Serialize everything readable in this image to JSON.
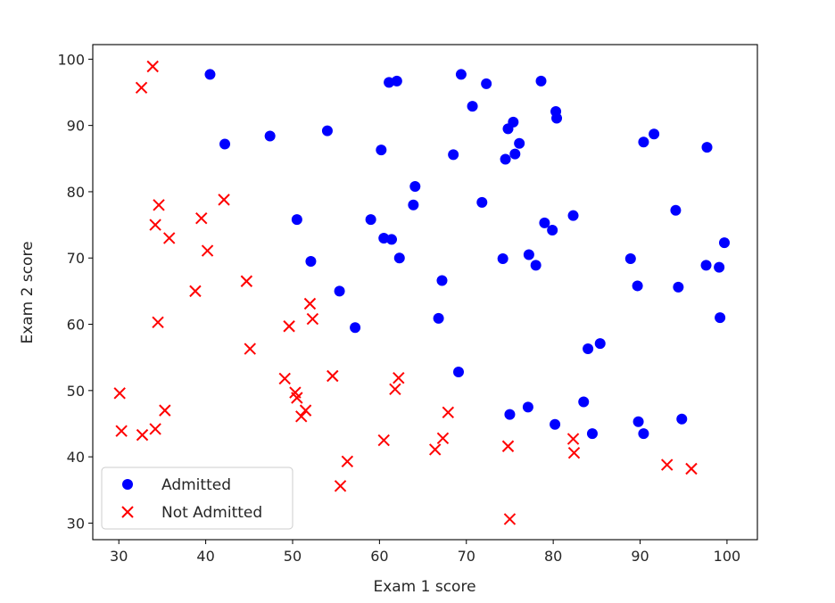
{
  "chart_data": {
    "type": "scatter",
    "xlabel": "Exam 1 score",
    "ylabel": "Exam 2 score",
    "xlim": [
      27,
      103.5
    ],
    "ylim": [
      27.5,
      102.2
    ],
    "xticks": [
      30,
      40,
      50,
      60,
      70,
      80,
      90,
      100
    ],
    "yticks": [
      30,
      40,
      50,
      60,
      70,
      80,
      90,
      100
    ],
    "grid": false,
    "legend_position": "lower-left",
    "series": [
      {
        "name": "Admitted",
        "marker": "circle",
        "color": "#0000ff",
        "points": [
          [
            40.5,
            97.7
          ],
          [
            42.2,
            87.2
          ],
          [
            47.4,
            88.4
          ],
          [
            50.5,
            75.8
          ],
          [
            52.1,
            69.5
          ],
          [
            54.0,
            89.2
          ],
          [
            55.4,
            65.0
          ],
          [
            57.2,
            59.5
          ],
          [
            59.0,
            75.8
          ],
          [
            60.2,
            86.3
          ],
          [
            60.5,
            73.0
          ],
          [
            61.1,
            96.5
          ],
          [
            61.4,
            72.8
          ],
          [
            62.0,
            96.7
          ],
          [
            62.3,
            70.0
          ],
          [
            63.9,
            78.0
          ],
          [
            64.1,
            80.8
          ],
          [
            66.8,
            60.9
          ],
          [
            67.2,
            66.6
          ],
          [
            68.5,
            85.6
          ],
          [
            69.1,
            52.8
          ],
          [
            69.4,
            97.7
          ],
          [
            70.7,
            92.9
          ],
          [
            71.8,
            78.4
          ],
          [
            72.3,
            96.3
          ],
          [
            74.2,
            69.9
          ],
          [
            74.5,
            84.9
          ],
          [
            74.8,
            89.5
          ],
          [
            75.0,
            46.4
          ],
          [
            75.4,
            90.5
          ],
          [
            75.6,
            85.7
          ],
          [
            76.1,
            87.3
          ],
          [
            77.1,
            47.5
          ],
          [
            77.2,
            70.5
          ],
          [
            78.0,
            68.9
          ],
          [
            78.6,
            96.7
          ],
          [
            79.0,
            75.3
          ],
          [
            79.9,
            74.2
          ],
          [
            80.2,
            44.9
          ],
          [
            80.3,
            92.1
          ],
          [
            80.4,
            91.1
          ],
          [
            82.3,
            76.4
          ],
          [
            83.5,
            48.3
          ],
          [
            84.0,
            56.3
          ],
          [
            84.5,
            43.5
          ],
          [
            85.4,
            57.1
          ],
          [
            88.9,
            69.9
          ],
          [
            89.7,
            65.8
          ],
          [
            89.8,
            45.3
          ],
          [
            90.4,
            43.5
          ],
          [
            90.4,
            87.5
          ],
          [
            91.6,
            88.7
          ],
          [
            94.1,
            77.2
          ],
          [
            94.4,
            65.6
          ],
          [
            94.8,
            45.7
          ],
          [
            97.6,
            68.9
          ],
          [
            97.7,
            86.7
          ],
          [
            99.1,
            68.6
          ],
          [
            99.2,
            61.0
          ],
          [
            99.7,
            72.3
          ]
        ]
      },
      {
        "name": "Not Admitted",
        "marker": "x",
        "color": "#ff0000",
        "points": [
          [
            30.1,
            49.6
          ],
          [
            30.3,
            43.9
          ],
          [
            32.6,
            95.7
          ],
          [
            32.7,
            43.3
          ],
          [
            33.9,
            98.9
          ],
          [
            34.2,
            44.2
          ],
          [
            34.2,
            75.0
          ],
          [
            34.5,
            60.3
          ],
          [
            34.6,
            78.0
          ],
          [
            35.3,
            47.0
          ],
          [
            35.8,
            73.0
          ],
          [
            38.8,
            65.0
          ],
          [
            39.5,
            76.0
          ],
          [
            40.2,
            71.1
          ],
          [
            42.1,
            78.8
          ],
          [
            44.7,
            66.5
          ],
          [
            45.1,
            56.3
          ],
          [
            49.1,
            51.8
          ],
          [
            49.6,
            59.7
          ],
          [
            50.3,
            49.7
          ],
          [
            50.5,
            48.9
          ],
          [
            51.0,
            46.1
          ],
          [
            51.5,
            47.0
          ],
          [
            52.0,
            63.1
          ],
          [
            52.3,
            60.8
          ],
          [
            54.6,
            52.2
          ],
          [
            55.5,
            35.6
          ],
          [
            56.3,
            39.3
          ],
          [
            60.5,
            42.5
          ],
          [
            61.8,
            50.2
          ],
          [
            62.2,
            51.9
          ],
          [
            66.4,
            41.1
          ],
          [
            67.3,
            42.8
          ],
          [
            67.9,
            46.7
          ],
          [
            74.8,
            41.6
          ],
          [
            75.0,
            30.6
          ],
          [
            82.3,
            42.7
          ],
          [
            82.4,
            40.6
          ],
          [
            93.1,
            38.8
          ],
          [
            95.9,
            38.2
          ]
        ]
      }
    ]
  }
}
